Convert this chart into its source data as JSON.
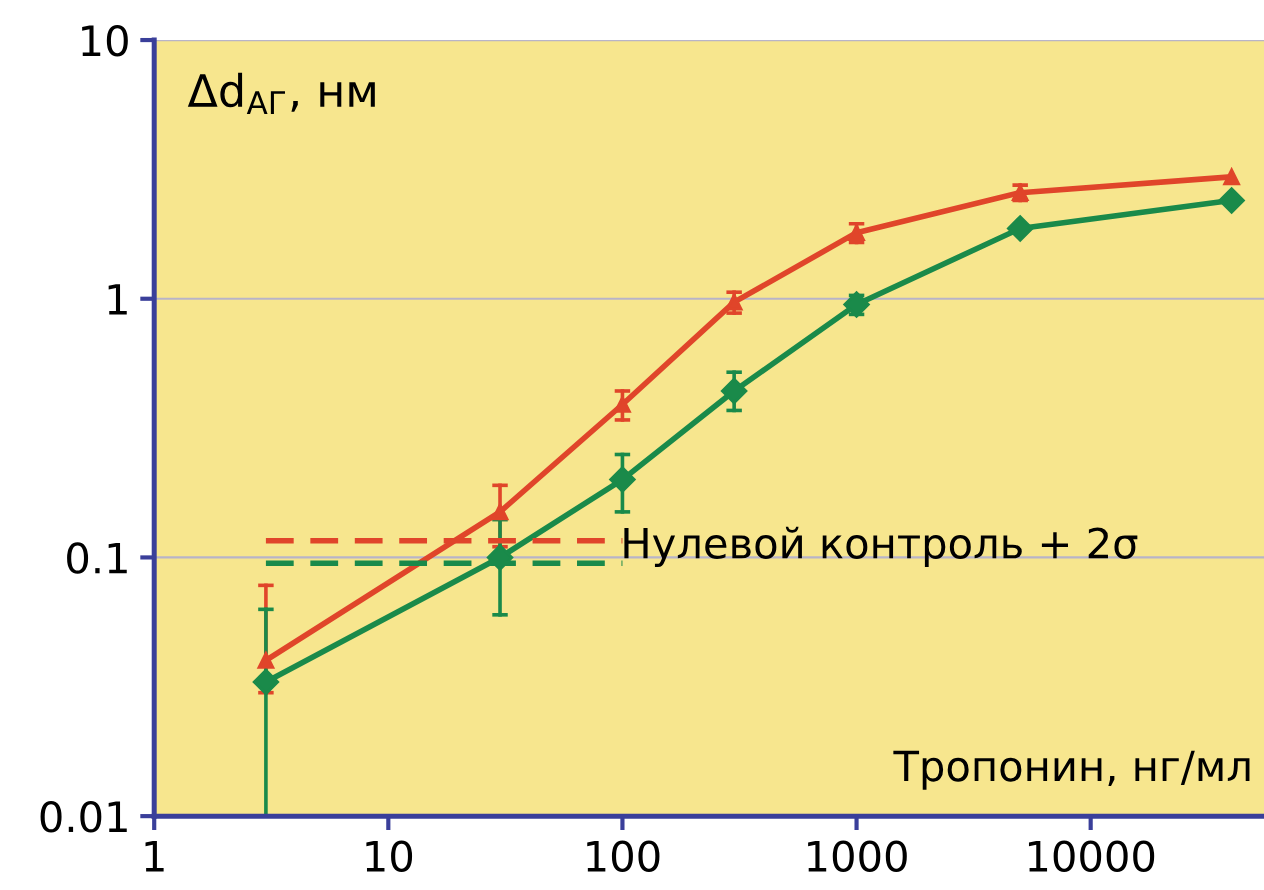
{
  "chart_data": {
    "type": "line",
    "ylabel": "Δd$_{АГ}$, нм",
    "xlabel": "Тропонин, нг/мл",
    "log": "xy",
    "xlim": [
      1,
      55000
    ],
    "xticks": [
      1,
      10,
      100,
      1000,
      10000
    ],
    "ylim": [
      0.01,
      10
    ],
    "yticks": [
      0.01,
      0.1,
      1,
      10
    ],
    "grid": "y",
    "series": [
      {
        "color": "#e0452a",
        "marker": "triangle",
        "x": [
          3,
          30,
          100,
          300,
          1000,
          5000,
          40000
        ],
        "values": [
          0.04,
          0.15,
          0.39,
          0.97,
          1.8,
          2.57,
          2.96
        ],
        "errors": [
          [
            0.03,
            0.078
          ],
          [
            0.11,
            0.19
          ],
          [
            0.34,
            0.44
          ],
          [
            0.88,
            1.06
          ],
          [
            1.65,
            1.95
          ],
          [
            2.4,
            2.75
          ],
          null
        ]
      },
      {
        "color": "#1a8a4a",
        "marker": "diamond",
        "x": [
          3,
          30,
          100,
          300,
          1000,
          5000,
          40000
        ],
        "values": [
          0.033,
          0.1,
          0.2,
          0.44,
          0.95,
          1.87,
          2.4
        ],
        "errors": [
          [
            0.01,
            0.063
          ],
          [
            0.06,
            0.14
          ],
          [
            0.15,
            0.25
          ],
          [
            0.37,
            0.52
          ],
          [
            0.87,
            1.03
          ],
          null,
          null
        ]
      },
      {
        "color": "#e0452a",
        "line_style": "dashed",
        "marker": "none",
        "x": [
          3,
          100
        ],
        "values": [
          0.116,
          0.116
        ]
      },
      {
        "color": "#1a8a4a",
        "line_style": "dashed",
        "marker": "none",
        "x": [
          3,
          100
        ],
        "values": [
          0.095,
          0.095
        ]
      }
    ],
    "annotations": [
      "Нулевой контроль + 2σ"
    ]
  }
}
